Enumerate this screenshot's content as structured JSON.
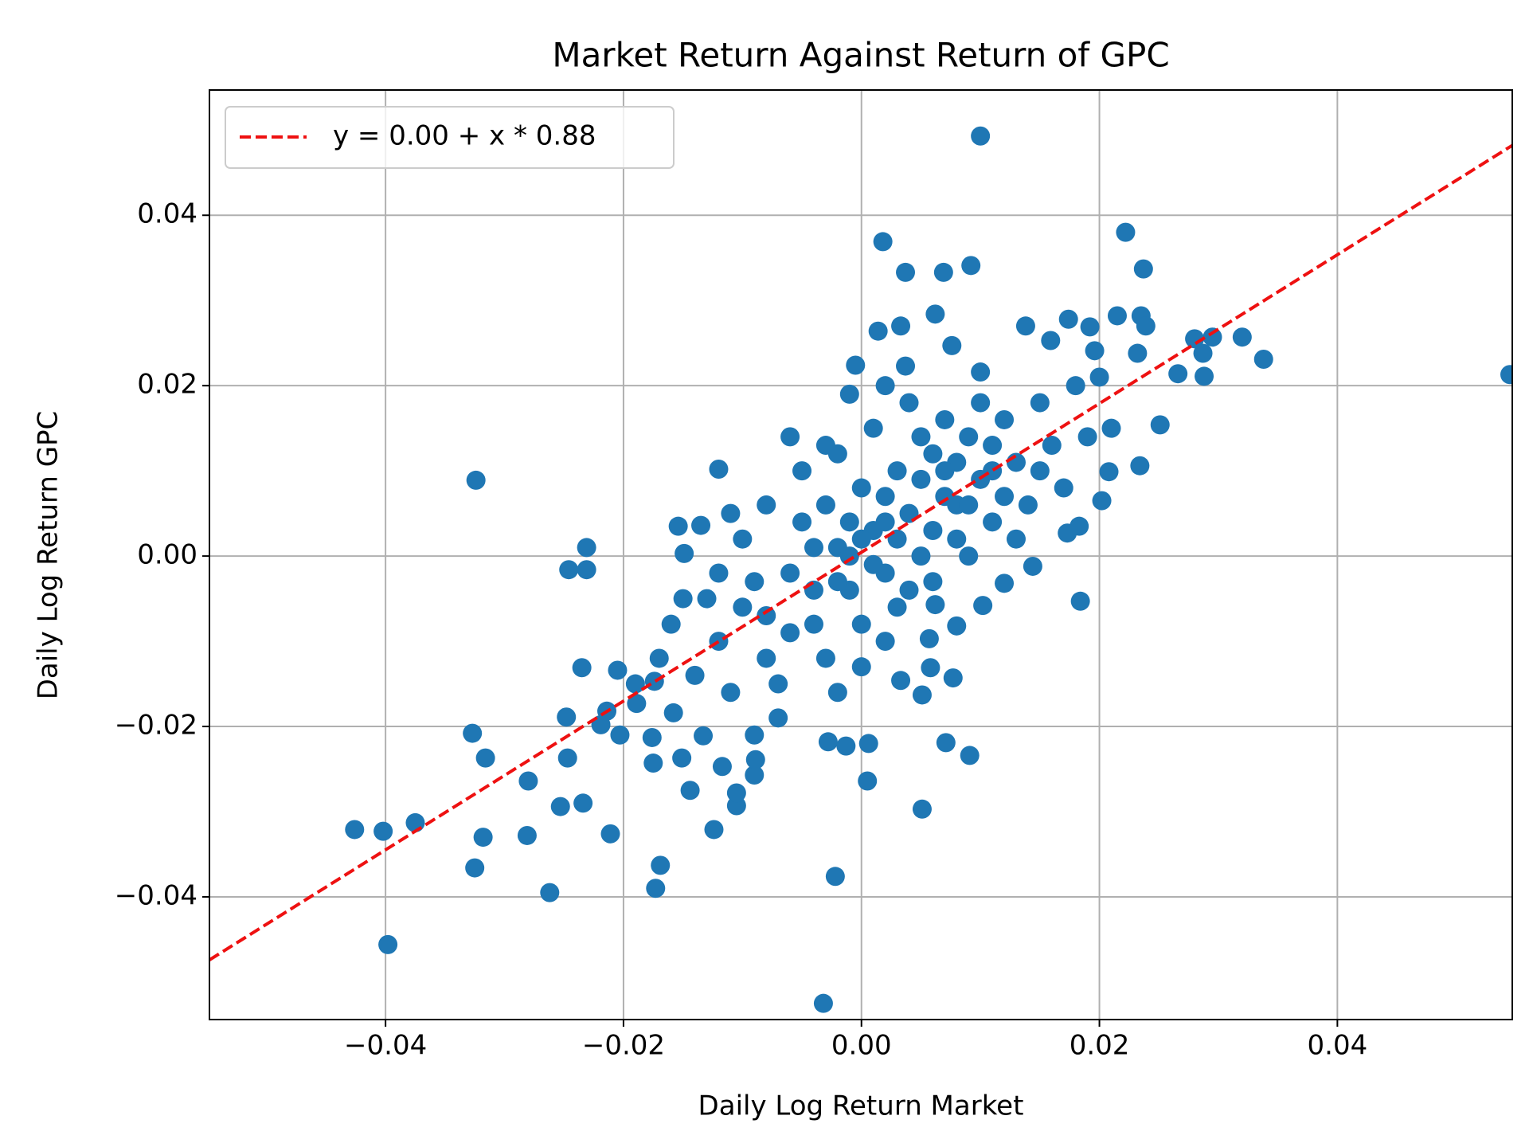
{
  "chart_data": {
    "type": "scatter",
    "title": "Market Return Against Return of GPC",
    "xlabel": "Daily Log Return Market",
    "ylabel": "Daily Log Return GPC",
    "xlim": [
      -0.0548,
      0.0547
    ],
    "ylim": [
      -0.0544,
      0.0547
    ],
    "xticks": [
      {
        "value": -0.04,
        "label": "−0.04"
      },
      {
        "value": -0.02,
        "label": "−0.02"
      },
      {
        "value": 0,
        "label": "0.00"
      },
      0.02,
      0.04
    ],
    "yticks": [
      {
        "value": -0.04,
        "label": "−0.04"
      },
      {
        "value": -0.02,
        "label": "−0.02"
      },
      {
        "value": 0,
        "label": "0.00"
      },
      0.02,
      0.04
    ],
    "grid": true,
    "legend": "upper left",
    "series": [
      {
        "type": "scatter",
        "color": "#1f77b4",
        "x": [
          0.01,
          0.0545,
          0.0018,
          0.0222,
          0.0237,
          0.0092,
          0.0037,
          0.0069,
          0.0338,
          0.032,
          0.0295,
          0.0288,
          0.0266,
          0.028,
          0.0287,
          -0.0324,
          -0.0231,
          -0.0246,
          -0.0231,
          -0.0426,
          -0.0402,
          -0.0375,
          -0.0398,
          -0.0327,
          -0.0316,
          -0.0318,
          -0.0325,
          -0.0281,
          -0.028,
          -0.0262,
          -0.0253,
          -0.0234,
          -0.0247,
          -0.0248,
          -0.0235,
          -0.0211,
          -0.0169,
          -0.0173,
          -0.0032,
          -0.0022,
          0.0005,
          0.0051,
          0.0006,
          -0.0028,
          -0.0013,
          0.0071,
          0.0091,
          0.0051,
          0.0033,
          0.0184,
          0.0202,
          0.0183,
          0.0173,
          0.0144,
          0.0234,
          0.0251,
          0.0208,
          -0.0005,
          0.0014,
          0.0033,
          0.0062,
          0.0076,
          0.0138,
          0.0174,
          0.0192,
          0.0215,
          0.0235,
          0.0239,
          0.0159,
          0.0196,
          0.0232,
          0.01,
          0.0037,
          -0.012,
          -0.0154,
          -0.0135,
          -0.0149,
          -0.0133,
          -0.0124,
          -0.0105,
          -0.0105,
          -0.009,
          -0.0089,
          -0.0117,
          -0.0144,
          -0.0151,
          -0.0175,
          -0.0176,
          -0.0203,
          -0.0219,
          -0.0214,
          -0.0205,
          -0.0189,
          -0.0174,
          -0.0158,
          0.0057,
          0.0058,
          0.0077,
          0.008,
          0.0102,
          0.012,
          0.0062,
          -0.012,
          -0.01,
          -0.008,
          -0.006,
          -0.005,
          -0.004,
          -0.003,
          -0.002,
          -0.001,
          0.0,
          0.001,
          0.002,
          0.003,
          0.004,
          0.005,
          0.006,
          0.007,
          0.008,
          0.009,
          0.01,
          0.011,
          0.012,
          0.013,
          0.014,
          0.015,
          0.016,
          0.017,
          0.018,
          -0.014,
          -0.013,
          -0.011,
          -0.009,
          -0.007,
          -0.006,
          -0.005,
          -0.004,
          -0.003,
          -0.002,
          -0.001,
          0.0,
          0.001,
          0.002,
          0.003,
          0.004,
          0.005,
          0.006,
          0.007,
          0.008,
          0.009,
          0.01,
          0.011,
          0.012,
          -0.008,
          -0.01,
          -0.016,
          -0.017,
          -0.019,
          -0.007,
          -0.009,
          -0.002,
          0.0,
          0.002,
          0.004,
          0.006,
          0.008,
          0.013,
          0.015,
          0.019,
          0.02,
          0.021,
          -0.001,
          0.002,
          0.005,
          -0.003,
          -0.006,
          -0.011,
          -0.012,
          -0.015,
          0.003,
          0.001,
          -0.001,
          0.0,
          0.002,
          -0.002,
          0.007,
          0.009,
          0.011,
          -0.004,
          -0.008
        ],
        "values": [
          0.0493,
          0.0213,
          0.0369,
          0.038,
          0.0337,
          0.0341,
          0.0333,
          0.0333,
          0.0231,
          0.0257,
          0.0257,
          0.0211,
          0.0214,
          0.0255,
          0.0238,
          0.0089,
          0.001,
          -0.0016,
          -0.0016,
          -0.0321,
          -0.0323,
          -0.0313,
          -0.0456,
          -0.0208,
          -0.0237,
          -0.033,
          -0.0366,
          -0.0328,
          -0.0264,
          -0.0395,
          -0.0294,
          -0.029,
          -0.0237,
          -0.0189,
          -0.0131,
          -0.0326,
          -0.0363,
          -0.039,
          -0.0525,
          -0.0376,
          -0.0264,
          -0.0297,
          -0.022,
          -0.0218,
          -0.0223,
          -0.0219,
          -0.0234,
          -0.0163,
          -0.0146,
          -0.0053,
          0.0065,
          0.0035,
          0.0027,
          -0.0012,
          0.0106,
          0.0154,
          0.0099,
          0.0224,
          0.0264,
          0.027,
          0.0284,
          0.0247,
          0.027,
          0.0278,
          0.0269,
          0.0282,
          0.0282,
          0.027,
          0.0253,
          0.0241,
          0.0238,
          0.0216,
          0.0223,
          0.0102,
          0.0035,
          0.0036,
          0.0003,
          -0.0211,
          -0.0321,
          -0.0293,
          -0.0278,
          -0.0257,
          -0.0239,
          -0.0247,
          -0.0275,
          -0.0237,
          -0.0243,
          -0.0213,
          -0.021,
          -0.0198,
          -0.0182,
          -0.0134,
          -0.0173,
          -0.0147,
          -0.0184,
          -0.0097,
          -0.0131,
          -0.0143,
          -0.0082,
          -0.0058,
          -0.0032,
          -0.0057,
          -0.01,
          -0.006,
          -0.012,
          -0.002,
          0.004,
          -0.008,
          0.006,
          0.001,
          -0.004,
          0.008,
          0.003,
          -0.002,
          0.01,
          0.005,
          0.0,
          0.012,
          0.007,
          0.002,
          0.014,
          0.009,
          0.004,
          0.016,
          0.011,
          0.006,
          0.018,
          0.013,
          0.008,
          0.02,
          -0.014,
          -0.005,
          -0.016,
          -0.003,
          -0.015,
          -0.009,
          0.01,
          0.001,
          -0.012,
          0.012,
          0.004,
          -0.008,
          0.015,
          0.007,
          -0.006,
          0.018,
          0.009,
          -0.003,
          0.016,
          0.011,
          0.0,
          0.018,
          0.013,
          0.007,
          0.006,
          0.002,
          -0.008,
          -0.012,
          -0.015,
          -0.019,
          -0.021,
          -0.016,
          -0.013,
          -0.01,
          -0.004,
          0.003,
          0.006,
          0.002,
          0.01,
          0.014,
          0.021,
          0.015,
          0.019,
          0.02,
          0.014,
          0.013,
          0.014,
          0.005,
          -0.002,
          -0.005,
          0.002,
          -0.001,
          0.0,
          0.002,
          0.004,
          -0.003,
          0.01,
          0.006,
          0.01,
          -0.004,
          -0.007
        ]
      },
      {
        "type": "line",
        "name": "y = 0.00 + x * 0.88",
        "color": "#ee1111",
        "dashed": true,
        "x": [
          -0.0548,
          0.0547
        ],
        "values": [
          -0.0474,
          0.0482
        ]
      }
    ]
  }
}
